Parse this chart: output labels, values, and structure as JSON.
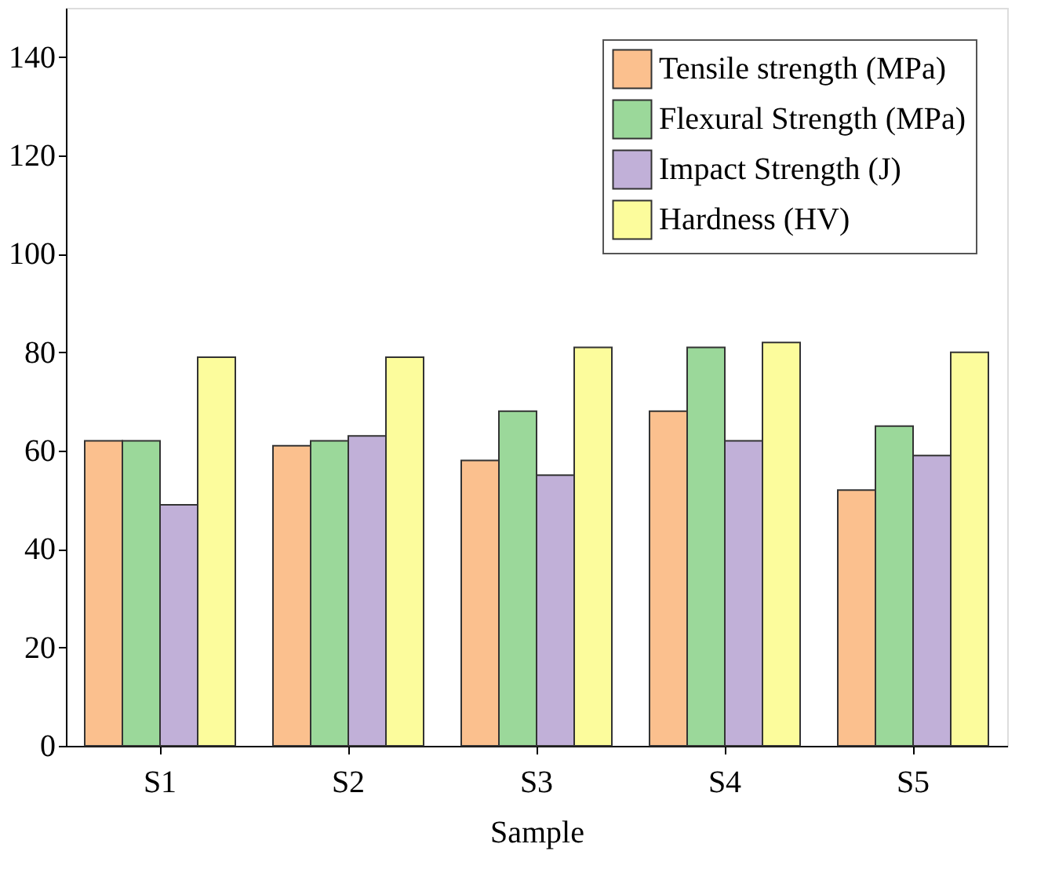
{
  "chart_data": {
    "type": "bar",
    "xlabel": "Sample",
    "categories": [
      "S1",
      "S2",
      "S3",
      "S4",
      "S5"
    ],
    "series": [
      {
        "name": "Tensile strength (MPa)",
        "color": "#fbc08e",
        "values": [
          62,
          61,
          58,
          68,
          52
        ]
      },
      {
        "name": "Flexural Strength (MPa)",
        "color": "#9bd89a",
        "values": [
          62,
          62,
          68,
          81,
          65
        ]
      },
      {
        "name": "Impact Strength (J)",
        "color": "#c1b0d8",
        "values": [
          49,
          63,
          55,
          62,
          59
        ]
      },
      {
        "name": "Hardness (HV)",
        "color": "#fcfc9c",
        "values": [
          79,
          79,
          81,
          82,
          80
        ]
      }
    ],
    "ylim": [
      0,
      150
    ],
    "yticks": [
      0,
      20,
      40,
      60,
      80,
      100,
      120,
      140
    ],
    "grid": false,
    "legend": "top right"
  }
}
